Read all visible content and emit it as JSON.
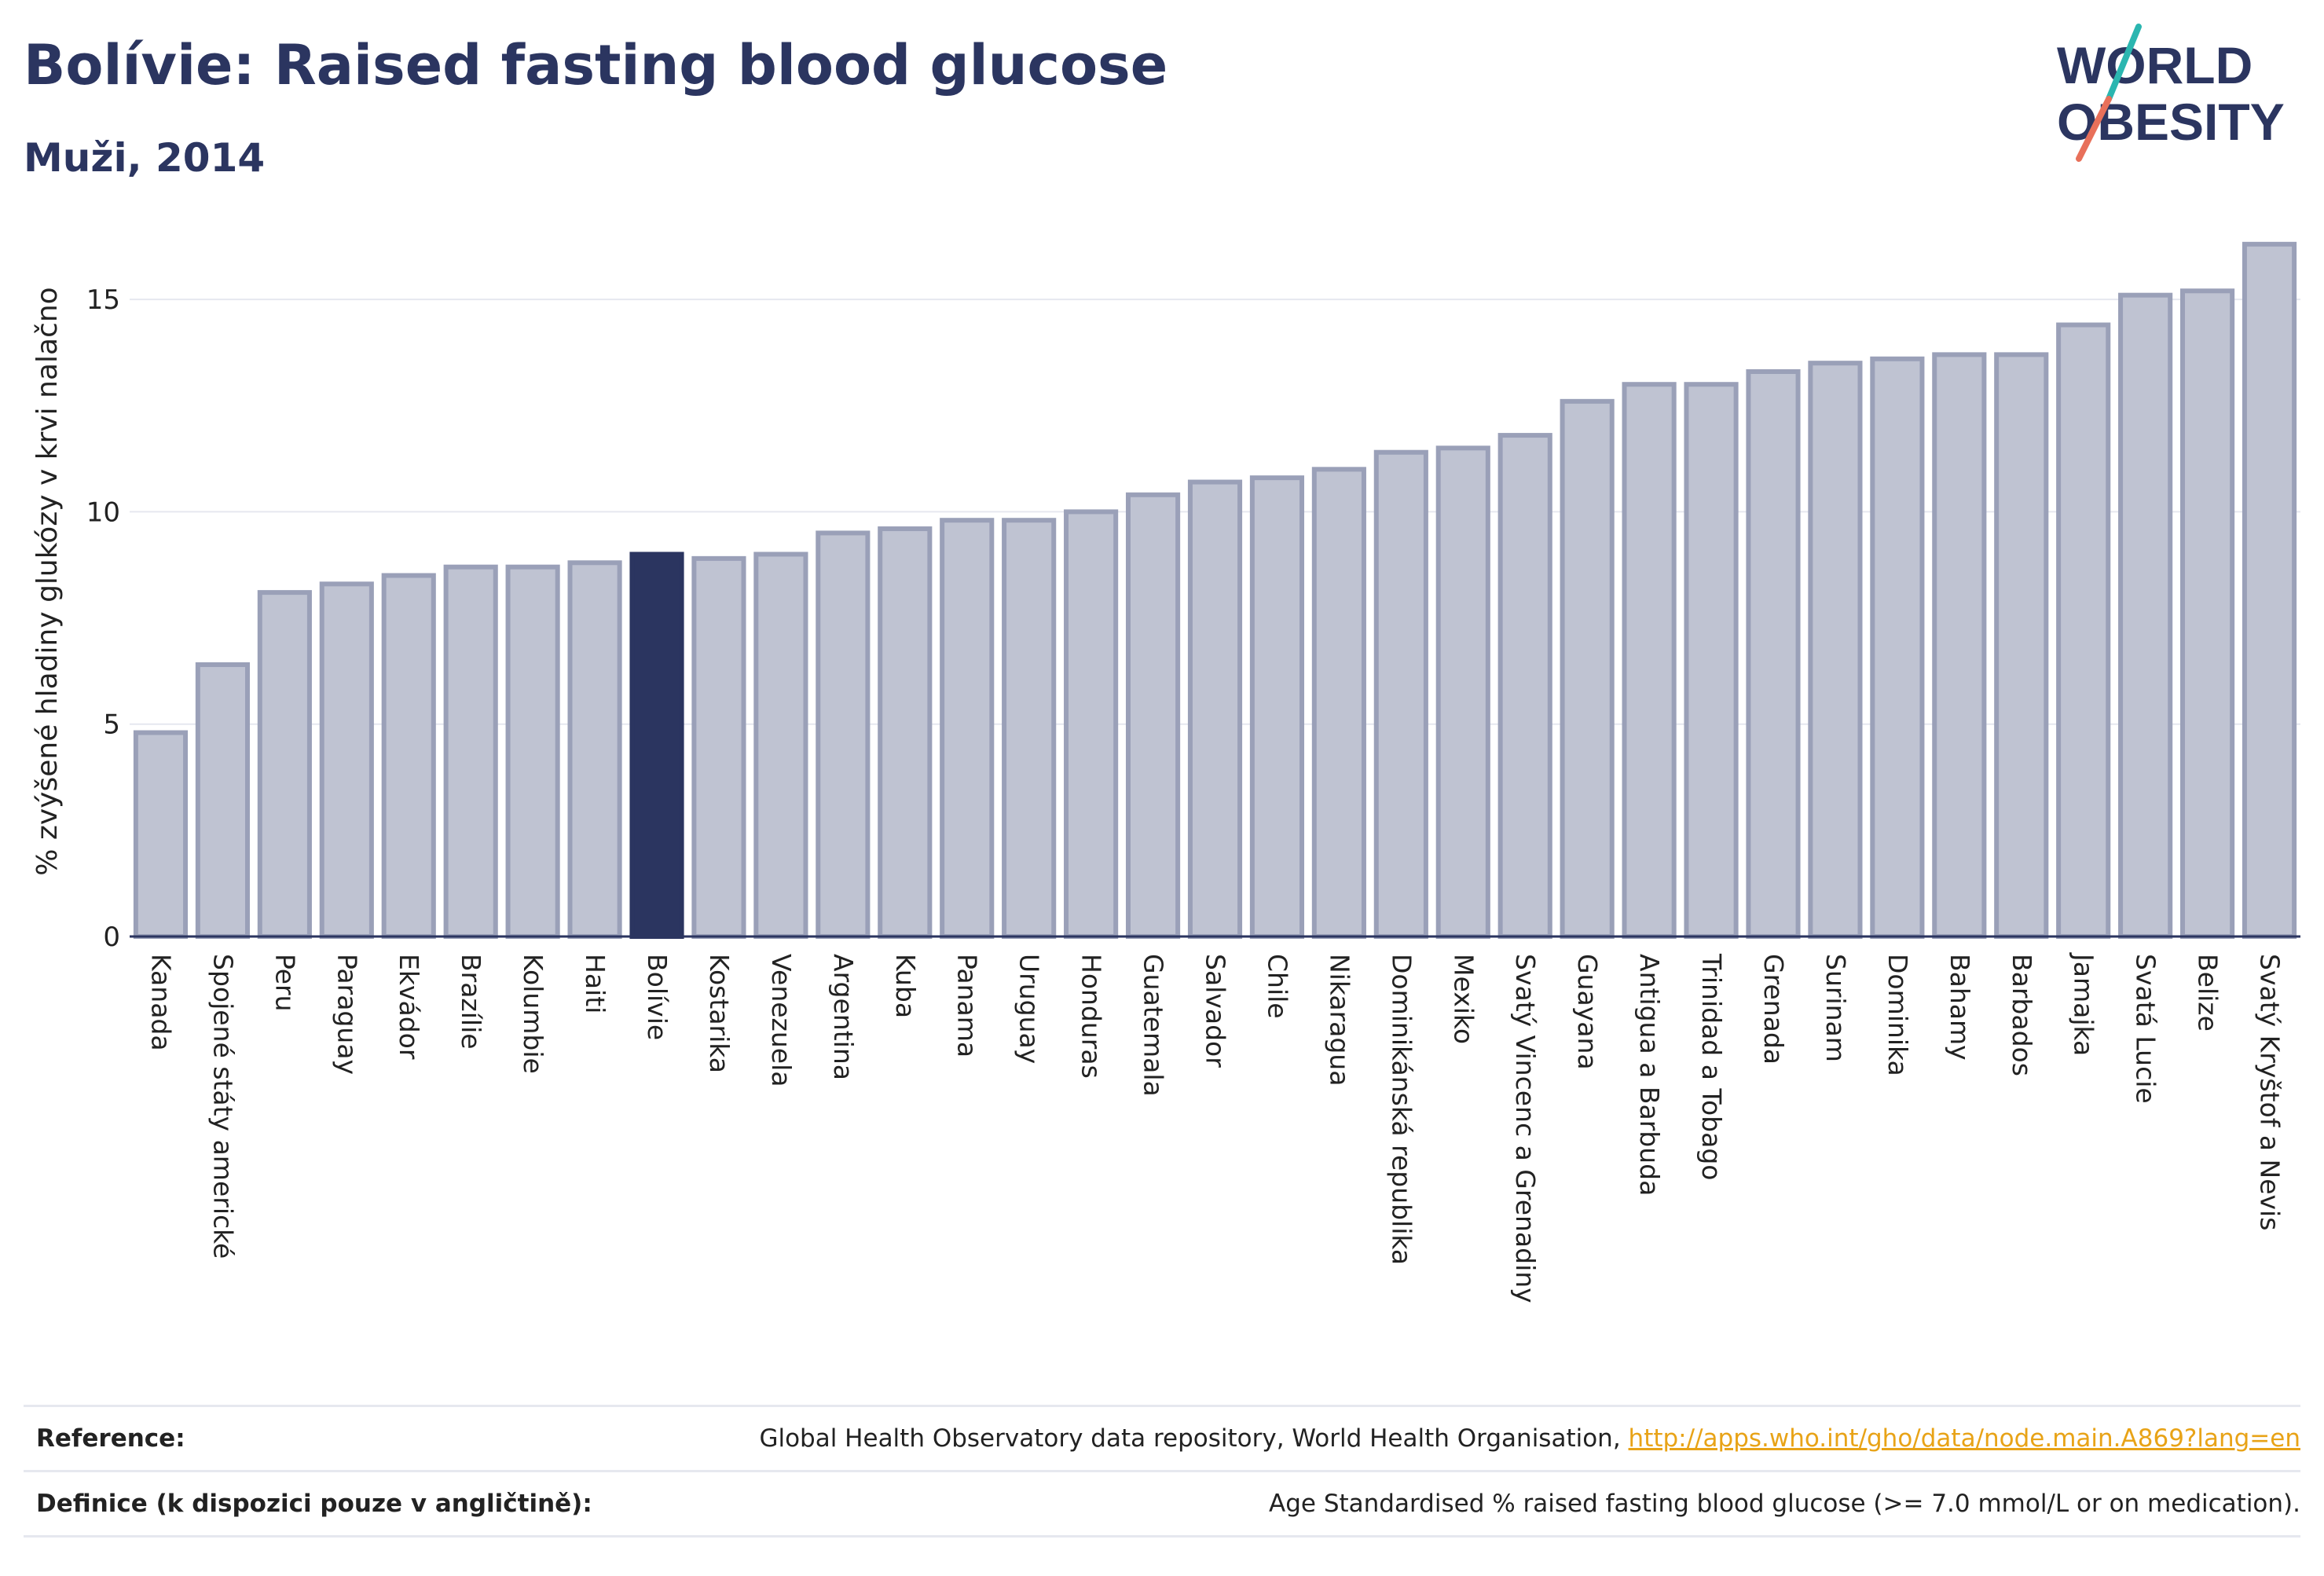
{
  "header": {
    "title": "Bolívie: Raised fasting blood glucose",
    "subtitle": "Muži, 2014"
  },
  "logo": {
    "line1": "WORLD",
    "line2": "OBESITY",
    "colors": {
      "text": "#2b3560",
      "slash_teal": "#2bb6b0",
      "slash_coral": "#e8705a"
    }
  },
  "colors": {
    "bar_fill": "#bfc3d2",
    "bar_stroke": "#9aa0b8",
    "highlight_fill": "#2b3560",
    "axis": "#2b3560",
    "grid": "#e6e8ef",
    "text": "#222222"
  },
  "chart_data": {
    "type": "bar",
    "ylabel": "% zvýšené hladiny glukózy v krvi nalačno",
    "ylim": [
      0,
      16.5
    ],
    "yticks": [
      0,
      5,
      10,
      15
    ],
    "grid": true,
    "highlight": "Bolívie",
    "categories": [
      "Kanada",
      "Spojené státy americké",
      "Peru",
      "Paraguay",
      "Ekvádor",
      "Brazílie",
      "Kolumbie",
      "Haiti",
      "Bolívie",
      "Kostarika",
      "Venezuela",
      "Argentina",
      "Kuba",
      "Panama",
      "Uruguay",
      "Honduras",
      "Guatemala",
      "Salvador",
      "Chile",
      "Nikaragua",
      "Dominikánská republika",
      "Mexiko",
      "Svatý Vincenc a Grenadiny",
      "Guayana",
      "Antigua a Barbuda",
      "Trinidad a Tobago",
      "Grenada",
      "Surinam",
      "Dominika",
      "Bahamy",
      "Barbados",
      "Jamajka",
      "Svatá Lucie",
      "Belize",
      "Svatý Kryštof a Nevis"
    ],
    "values": [
      4.8,
      6.4,
      8.1,
      8.3,
      8.5,
      8.7,
      8.7,
      8.8,
      9.0,
      8.9,
      9.0,
      9.5,
      9.6,
      9.8,
      9.8,
      10.0,
      10.4,
      10.7,
      10.8,
      11.0,
      11.4,
      11.5,
      11.8,
      12.6,
      13.0,
      13.0,
      13.3,
      13.5,
      13.6,
      13.7,
      13.7,
      14.4,
      15.1,
      15.2,
      16.3
    ]
  },
  "footer": {
    "reference_label": "Reference:",
    "reference_text": "Global Health Observatory data repository, World Health Organisation, ",
    "reference_link": "http://apps.who.int/gho/data/node.main.A869?lang=en",
    "definition_label": "Definice (k dispozici pouze v angličtině):",
    "definition_text": "Age Standardised % raised fasting blood glucose (>= 7.0 mmol/L or on medication)."
  }
}
